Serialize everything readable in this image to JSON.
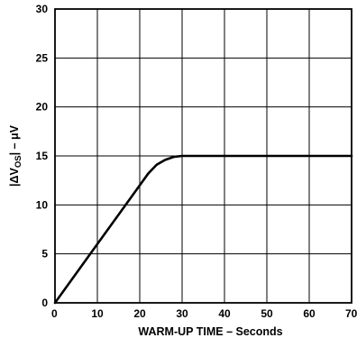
{
  "chart_data": {
    "type": "line",
    "title": "",
    "xlabel": "WARM-UP TIME – Seconds",
    "ylabel": {
      "prefix": "|ΔV",
      "subscript": "OS",
      "suffix": "| – μV"
    },
    "xlim": [
      0,
      70
    ],
    "ylim": [
      0,
      30
    ],
    "x_ticks": [
      "0",
      "10",
      "20",
      "30",
      "40",
      "50",
      "60",
      "70"
    ],
    "y_ticks": [
      "0",
      "5",
      "10",
      "15",
      "20",
      "25",
      "30"
    ],
    "grid": true,
    "legend": "none",
    "series": [
      {
        "x": [
          0,
          5,
          10,
          15,
          20,
          22,
          24,
          26,
          28,
          30,
          35,
          40,
          50,
          60,
          70
        ],
        "y": [
          0,
          3,
          6,
          9,
          12,
          13.2,
          14.1,
          14.6,
          14.9,
          15,
          15,
          15,
          15,
          15,
          15
        ]
      }
    ],
    "colors": {
      "line": "#000000",
      "grid": "#000000",
      "background": "#ffffff"
    }
  }
}
